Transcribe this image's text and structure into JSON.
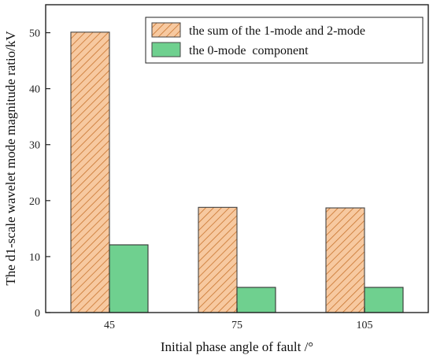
{
  "chart_data": {
    "type": "bar",
    "categories": [
      "45",
      "75",
      "105"
    ],
    "series": [
      {
        "name": "the sum of the 1-mode and 2-mode",
        "values": [
          50.1,
          18.8,
          18.7
        ],
        "color": "#f4a460",
        "pattern": "hatch"
      },
      {
        "name": "the 0-mode  component",
        "values": [
          12.1,
          4.5,
          4.5
        ],
        "color": "#6fd08f",
        "pattern": "solid"
      }
    ],
    "title": "",
    "xlabel": "Initial phase angle of fault /°",
    "ylabel": "The d1-scale wavelet mode magnitude ratio/kV",
    "ylim": [
      0,
      55
    ],
    "yticks": [
      0,
      10,
      20,
      30,
      40,
      50
    ],
    "grid": false,
    "legend_position": "top-right"
  }
}
